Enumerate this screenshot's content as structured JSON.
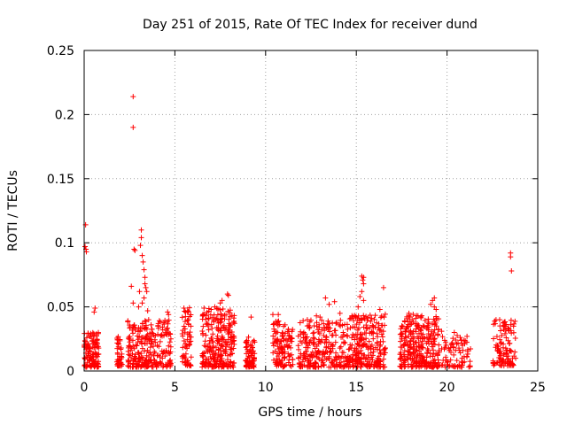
{
  "chart_data": {
    "type": "scatter",
    "title": "Day 251 of 2015, Rate Of TEC Index for receiver dund",
    "xlabel": "GPS time / hours",
    "ylabel": "ROTI / TECUs",
    "xlim": [
      0,
      25
    ],
    "ylim": [
      0,
      0.25
    ],
    "x_ticks": [
      "0",
      "5",
      "10",
      "15",
      "20",
      "25"
    ],
    "y_ticks": [
      "0",
      "0.05",
      "0.1",
      "0.15",
      "0.2",
      "0.25"
    ],
    "grid": true,
    "marker": "+",
    "color": "#ff0000",
    "clusters": [
      {
        "x": [
          0.0,
          0.8
        ],
        "y": [
          0.003,
          0.03
        ],
        "n": 120
      },
      {
        "x": [
          1.8,
          2.1
        ],
        "y": [
          0.004,
          0.027
        ],
        "n": 40
      },
      {
        "x": [
          2.4,
          4.8
        ],
        "y": [
          0.003,
          0.04
        ],
        "n": 260
      },
      {
        "x": [
          5.4,
          5.9
        ],
        "y": [
          0.004,
          0.05
        ],
        "n": 60
      },
      {
        "x": [
          6.5,
          8.3
        ],
        "y": [
          0.003,
          0.05
        ],
        "n": 260
      },
      {
        "x": [
          8.9,
          9.4
        ],
        "y": [
          0.003,
          0.028
        ],
        "n": 70
      },
      {
        "x": [
          10.4,
          11.5
        ],
        "y": [
          0.003,
          0.04
        ],
        "n": 120
      },
      {
        "x": [
          11.8,
          14.6
        ],
        "y": [
          0.003,
          0.04
        ],
        "n": 260
      },
      {
        "x": [
          14.6,
          16.6
        ],
        "y": [
          0.003,
          0.045
        ],
        "n": 240
      },
      {
        "x": [
          17.4,
          19.6
        ],
        "y": [
          0.003,
          0.045
        ],
        "n": 300
      },
      {
        "x": [
          19.7,
          21.3
        ],
        "y": [
          0.003,
          0.028
        ],
        "n": 80
      },
      {
        "x": [
          22.5,
          23.8
        ],
        "y": [
          0.004,
          0.04
        ],
        "n": 110
      }
    ],
    "points": [
      {
        "x": 0.08,
        "y": 0.114
      },
      {
        "x": 0.05,
        "y": 0.097
      },
      {
        "x": 0.1,
        "y": 0.095
      },
      {
        "x": 0.12,
        "y": 0.093
      },
      {
        "x": 2.7,
        "y": 0.214
      },
      {
        "x": 2.7,
        "y": 0.19
      },
      {
        "x": 2.75,
        "y": 0.095
      },
      {
        "x": 2.8,
        "y": 0.094
      },
      {
        "x": 3.15,
        "y": 0.11
      },
      {
        "x": 3.15,
        "y": 0.104
      },
      {
        "x": 3.1,
        "y": 0.098
      },
      {
        "x": 3.2,
        "y": 0.09
      },
      {
        "x": 3.25,
        "y": 0.085
      },
      {
        "x": 3.3,
        "y": 0.079
      },
      {
        "x": 3.35,
        "y": 0.073
      },
      {
        "x": 3.35,
        "y": 0.068
      },
      {
        "x": 3.4,
        "y": 0.065
      },
      {
        "x": 3.45,
        "y": 0.062
      },
      {
        "x": 3.3,
        "y": 0.057
      },
      {
        "x": 3.2,
        "y": 0.053
      },
      {
        "x": 3.05,
        "y": 0.062
      },
      {
        "x": 2.6,
        "y": 0.066
      },
      {
        "x": 2.7,
        "y": 0.053
      },
      {
        "x": 3.0,
        "y": 0.05
      },
      {
        "x": 3.5,
        "y": 0.047
      },
      {
        "x": 0.6,
        "y": 0.049
      },
      {
        "x": 0.55,
        "y": 0.046
      },
      {
        "x": 4.6,
        "y": 0.046
      },
      {
        "x": 4.65,
        "y": 0.044
      },
      {
        "x": 5.5,
        "y": 0.049
      },
      {
        "x": 5.7,
        "y": 0.047
      },
      {
        "x": 7.6,
        "y": 0.055
      },
      {
        "x": 7.5,
        "y": 0.053
      },
      {
        "x": 7.9,
        "y": 0.06
      },
      {
        "x": 7.95,
        "y": 0.059
      },
      {
        "x": 7.2,
        "y": 0.05
      },
      {
        "x": 7.0,
        "y": 0.048
      },
      {
        "x": 9.2,
        "y": 0.042
      },
      {
        "x": 10.4,
        "y": 0.044
      },
      {
        "x": 10.7,
        "y": 0.044
      },
      {
        "x": 12.3,
        "y": 0.04
      },
      {
        "x": 12.8,
        "y": 0.043
      },
      {
        "x": 13.0,
        "y": 0.042
      },
      {
        "x": 13.3,
        "y": 0.057
      },
      {
        "x": 13.5,
        "y": 0.052
      },
      {
        "x": 13.8,
        "y": 0.054
      },
      {
        "x": 14.1,
        "y": 0.045
      },
      {
        "x": 15.3,
        "y": 0.074
      },
      {
        "x": 15.4,
        "y": 0.073
      },
      {
        "x": 15.35,
        "y": 0.071
      },
      {
        "x": 15.4,
        "y": 0.068
      },
      {
        "x": 15.3,
        "y": 0.062
      },
      {
        "x": 15.2,
        "y": 0.058
      },
      {
        "x": 15.4,
        "y": 0.055
      },
      {
        "x": 15.1,
        "y": 0.05
      },
      {
        "x": 16.5,
        "y": 0.065
      },
      {
        "x": 16.3,
        "y": 0.048
      },
      {
        "x": 17.9,
        "y": 0.045
      },
      {
        "x": 18.4,
        "y": 0.043
      },
      {
        "x": 19.3,
        "y": 0.057
      },
      {
        "x": 19.2,
        "y": 0.055
      },
      {
        "x": 19.1,
        "y": 0.052
      },
      {
        "x": 19.3,
        "y": 0.05
      },
      {
        "x": 19.4,
        "y": 0.048
      },
      {
        "x": 19.7,
        "y": 0.031
      },
      {
        "x": 20.4,
        "y": 0.03
      },
      {
        "x": 21.1,
        "y": 0.027
      },
      {
        "x": 22.7,
        "y": 0.04
      },
      {
        "x": 22.9,
        "y": 0.04
      },
      {
        "x": 23.2,
        "y": 0.035
      },
      {
        "x": 23.5,
        "y": 0.092
      },
      {
        "x": 23.5,
        "y": 0.089
      },
      {
        "x": 23.55,
        "y": 0.078
      }
    ]
  }
}
